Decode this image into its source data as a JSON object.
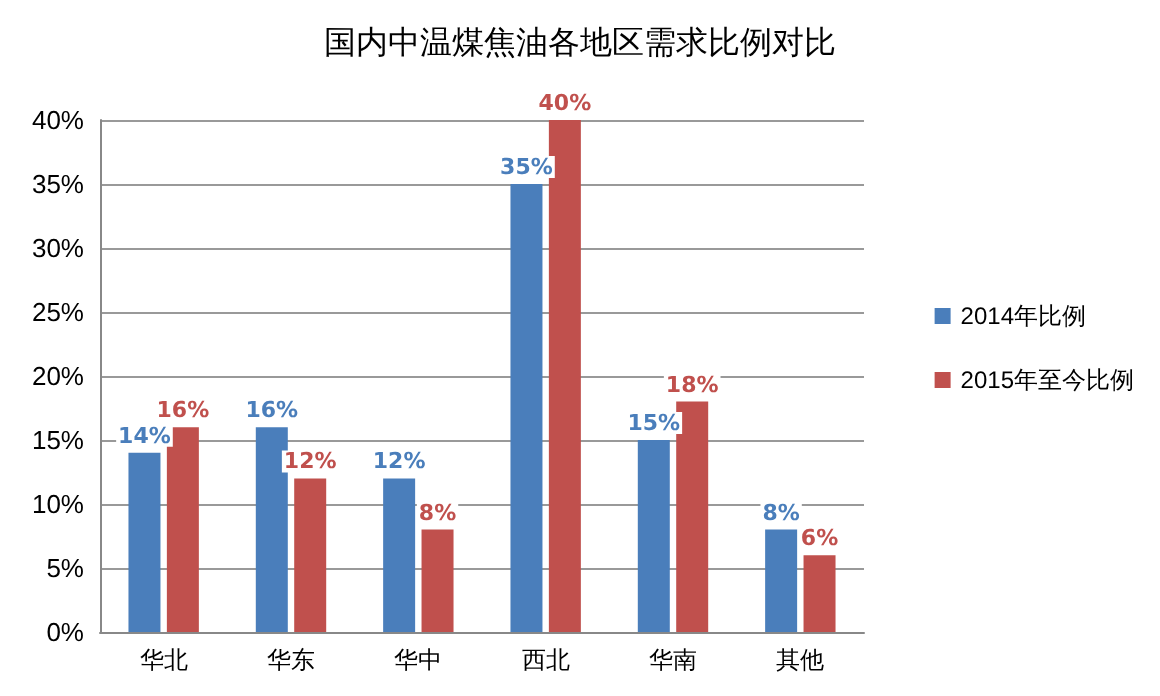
{
  "chart_data": {
    "type": "bar",
    "title": "国内中温煤焦油各地区需求比例对比",
    "categories": [
      "华北",
      "华东",
      "华中",
      "西北",
      "华南",
      "其他"
    ],
    "series": [
      {
        "name": "2014年比例",
        "color": "#4a7ebb",
        "values": [
          14,
          16,
          12,
          35,
          15,
          8
        ],
        "value_labels": [
          "14%",
          "16%",
          "12%",
          "35%",
          "15%",
          "8%"
        ]
      },
      {
        "name": "2015年至今比例",
        "color": "#c0504d",
        "values": [
          16,
          12,
          8,
          40,
          18,
          6
        ],
        "value_labels": [
          "16%",
          "12%",
          "8%",
          "40%",
          "18%",
          "6%"
        ]
      }
    ],
    "ylim": [
      0,
      40
    ],
    "yticks": [
      {
        "value": 0,
        "label": "0%"
      },
      {
        "value": 5,
        "label": "5%"
      },
      {
        "value": 10,
        "label": "10%"
      },
      {
        "value": 15,
        "label": "15%"
      },
      {
        "value": 20,
        "label": "20%"
      },
      {
        "value": 25,
        "label": "25%"
      },
      {
        "value": 30,
        "label": "30%"
      },
      {
        "value": 35,
        "label": "35%"
      },
      {
        "value": 40,
        "label": "40%"
      }
    ],
    "grid": "y",
    "legend": "right"
  }
}
